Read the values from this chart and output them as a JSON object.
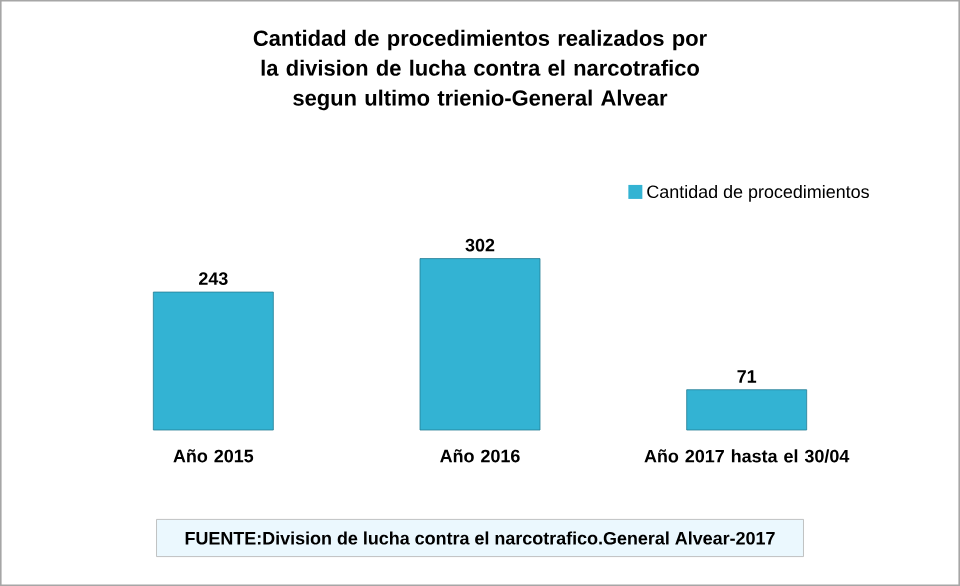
{
  "chart_data": {
    "type": "bar",
    "title": "Cantidad de procedimientos realizados por la division de lucha contra el narcotrafico segun ultimo trienio-General Alvear",
    "categories": [
      "Año 2015",
      "Año 2016",
      "Año 2017 hasta el 30/04"
    ],
    "series": [
      {
        "name": "Cantidad de procedimientos",
        "color": "#33b3d3",
        "values": [
          243,
          302,
          71
        ]
      }
    ],
    "data_labels": true,
    "legend": "top right",
    "annotations": [
      "FUENTE:Division de lucha contra el narcotrafico.General Alvear-2017"
    ]
  }
}
